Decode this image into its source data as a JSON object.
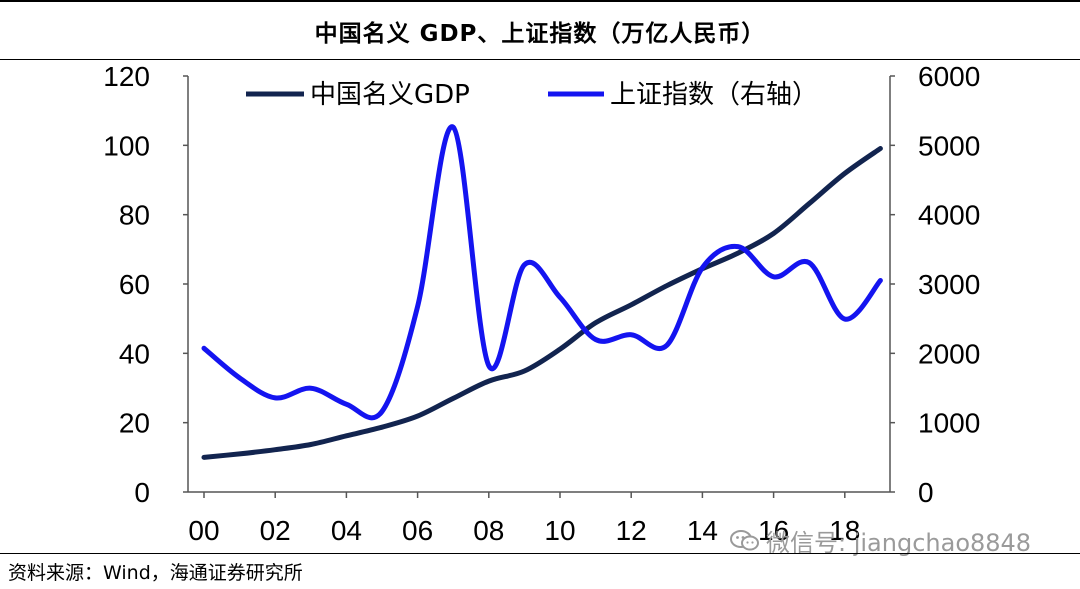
{
  "title": "中国名义 GDP、上证指数（万亿人民币）",
  "source": "资料来源：Wind，海通证券研究所",
  "watermark": "微信号: jiangchao8848",
  "chart_data": {
    "type": "line",
    "title": "中国名义 GDP、上证指数（万亿人民币）",
    "x": [
      "00",
      "01",
      "02",
      "03",
      "04",
      "05",
      "06",
      "07",
      "08",
      "09",
      "10",
      "11",
      "12",
      "13",
      "14",
      "15",
      "16",
      "17",
      "18",
      "19"
    ],
    "x_tick_labels": [
      "00",
      "02",
      "04",
      "06",
      "08",
      "10",
      "12",
      "14",
      "16",
      "18"
    ],
    "y_left": {
      "lim": [
        0,
        120
      ],
      "ticks": [
        "0",
        "20",
        "40",
        "60",
        "80",
        "100",
        "120"
      ]
    },
    "y_right": {
      "lim": [
        0,
        6000
      ],
      "ticks": [
        "0",
        "1000",
        "2000",
        "3000",
        "4000",
        "5000",
        "6000"
      ]
    },
    "legend_position": "top",
    "series": [
      {
        "name": "中国名义GDP",
        "axis": "left",
        "color": "#12244f",
        "values": [
          10.0,
          11.0,
          12.2,
          13.7,
          16.2,
          18.7,
          21.9,
          27.0,
          32.0,
          34.9,
          41.2,
          48.8,
          54.0,
          59.5,
          64.4,
          68.9,
          74.6,
          83.2,
          91.9,
          99.1
        ]
      },
      {
        "name": "上证指数（右轴）",
        "axis": "right",
        "color": "#1414f0",
        "values": [
          2073,
          1646,
          1357,
          1497,
          1267,
          1161,
          2675,
          5262,
          1821,
          3277,
          2808,
          2199,
          2269,
          2116,
          3235,
          3539,
          3104,
          3307,
          2494,
          3050
        ]
      }
    ]
  }
}
